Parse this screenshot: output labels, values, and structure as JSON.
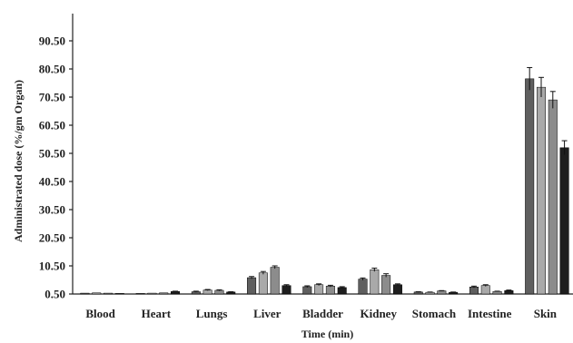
{
  "chart_data": {
    "type": "bar",
    "title": "",
    "xlabel": "Time (min)",
    "ylabel": "Administrated dose (%/gm Organ)",
    "ylim": [
      0.5,
      95
    ],
    "yticks": [
      "0.50",
      "10.50",
      "20.50",
      "30.50",
      "40.50",
      "50.50",
      "60.50",
      "70.50",
      "80.50",
      "90.50"
    ],
    "ytick_values": [
      0.5,
      10.5,
      20.5,
      30.5,
      40.5,
      50.5,
      60.5,
      70.5,
      80.5,
      90.5
    ],
    "categories": [
      "Blood",
      "Heart",
      "Lungs",
      "Liver",
      "Bladder",
      "Kidney",
      "Stomach",
      "Intestine",
      "Skin"
    ],
    "grid": false,
    "legend": "none",
    "series": [
      {
        "color": "#5f5f5f",
        "values": [
          0.3,
          0.2,
          0.8,
          5.8,
          2.6,
          5.3,
          0.7,
          2.5,
          76.5
        ],
        "errors": [
          0.1,
          0.1,
          0.2,
          0.4,
          0.3,
          0.4,
          0.1,
          0.3,
          4.0
        ]
      },
      {
        "color": "#a9a9a9",
        "values": [
          0.4,
          0.3,
          1.4,
          7.5,
          3.3,
          8.6,
          0.6,
          3.0,
          73.5
        ],
        "errors": [
          0.1,
          0.1,
          0.2,
          0.5,
          0.3,
          0.6,
          0.1,
          0.3,
          3.5
        ]
      },
      {
        "color": "#8c8c8c",
        "values": [
          0.3,
          0.4,
          1.3,
          9.5,
          2.8,
          6.6,
          1.1,
          0.9,
          69.0
        ],
        "errors": [
          0.1,
          0.1,
          0.2,
          0.5,
          0.3,
          0.6,
          0.1,
          0.1,
          3.0
        ]
      },
      {
        "color": "#1e1e1e",
        "values": [
          0.2,
          0.9,
          0.7,
          3.0,
          2.3,
          3.3,
          0.6,
          1.2,
          52.0
        ],
        "errors": [
          0.1,
          0.1,
          0.1,
          0.3,
          0.3,
          0.3,
          0.1,
          0.2,
          2.5
        ]
      }
    ]
  }
}
